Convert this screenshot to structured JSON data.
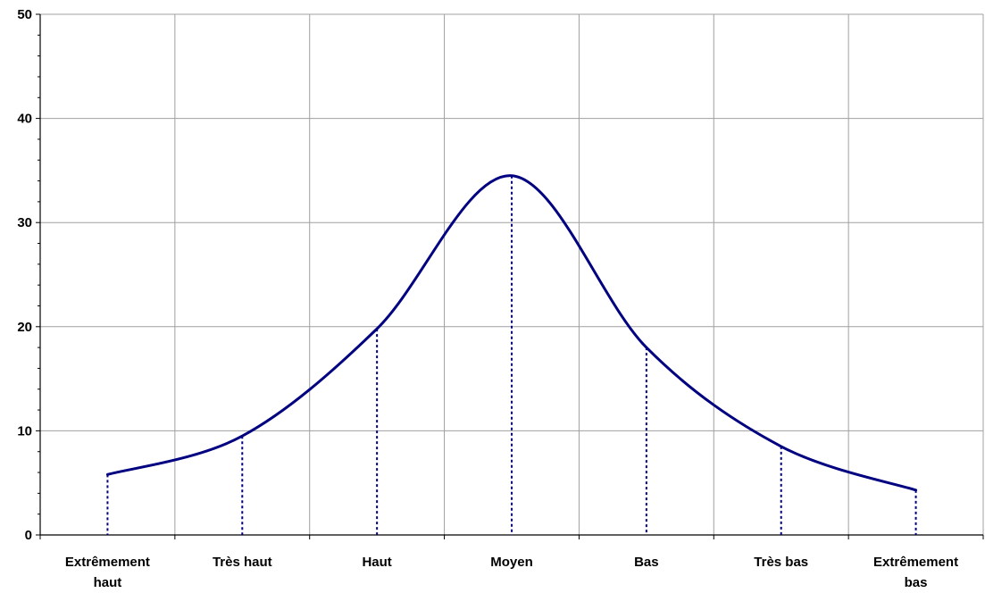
{
  "chart_data": {
    "type": "line",
    "categories": [
      "Extrêmement haut",
      "Très haut",
      "Haut",
      "Moyen",
      "Bas",
      "Très bas",
      "Extrêmement bas"
    ],
    "category_lines": [
      [
        "Extrêmement",
        "haut"
      ],
      [
        "Très haut"
      ],
      [
        "Haut"
      ],
      [
        "Moyen"
      ],
      [
        "Bas"
      ],
      [
        "Très bas"
      ],
      [
        "Extrêmement",
        "bas"
      ]
    ],
    "series": [
      {
        "values": [
          5.8,
          9.5,
          19.8,
          34.5,
          18.0,
          8.5,
          4.3
        ],
        "color": "#000080",
        "smooth": true,
        "drop_lines": true
      }
    ],
    "yticks": [
      0,
      10,
      20,
      30,
      40,
      50
    ],
    "ylim": [
      0,
      50
    ],
    "grid": true,
    "title": "",
    "xlabel": "",
    "ylabel": ""
  }
}
